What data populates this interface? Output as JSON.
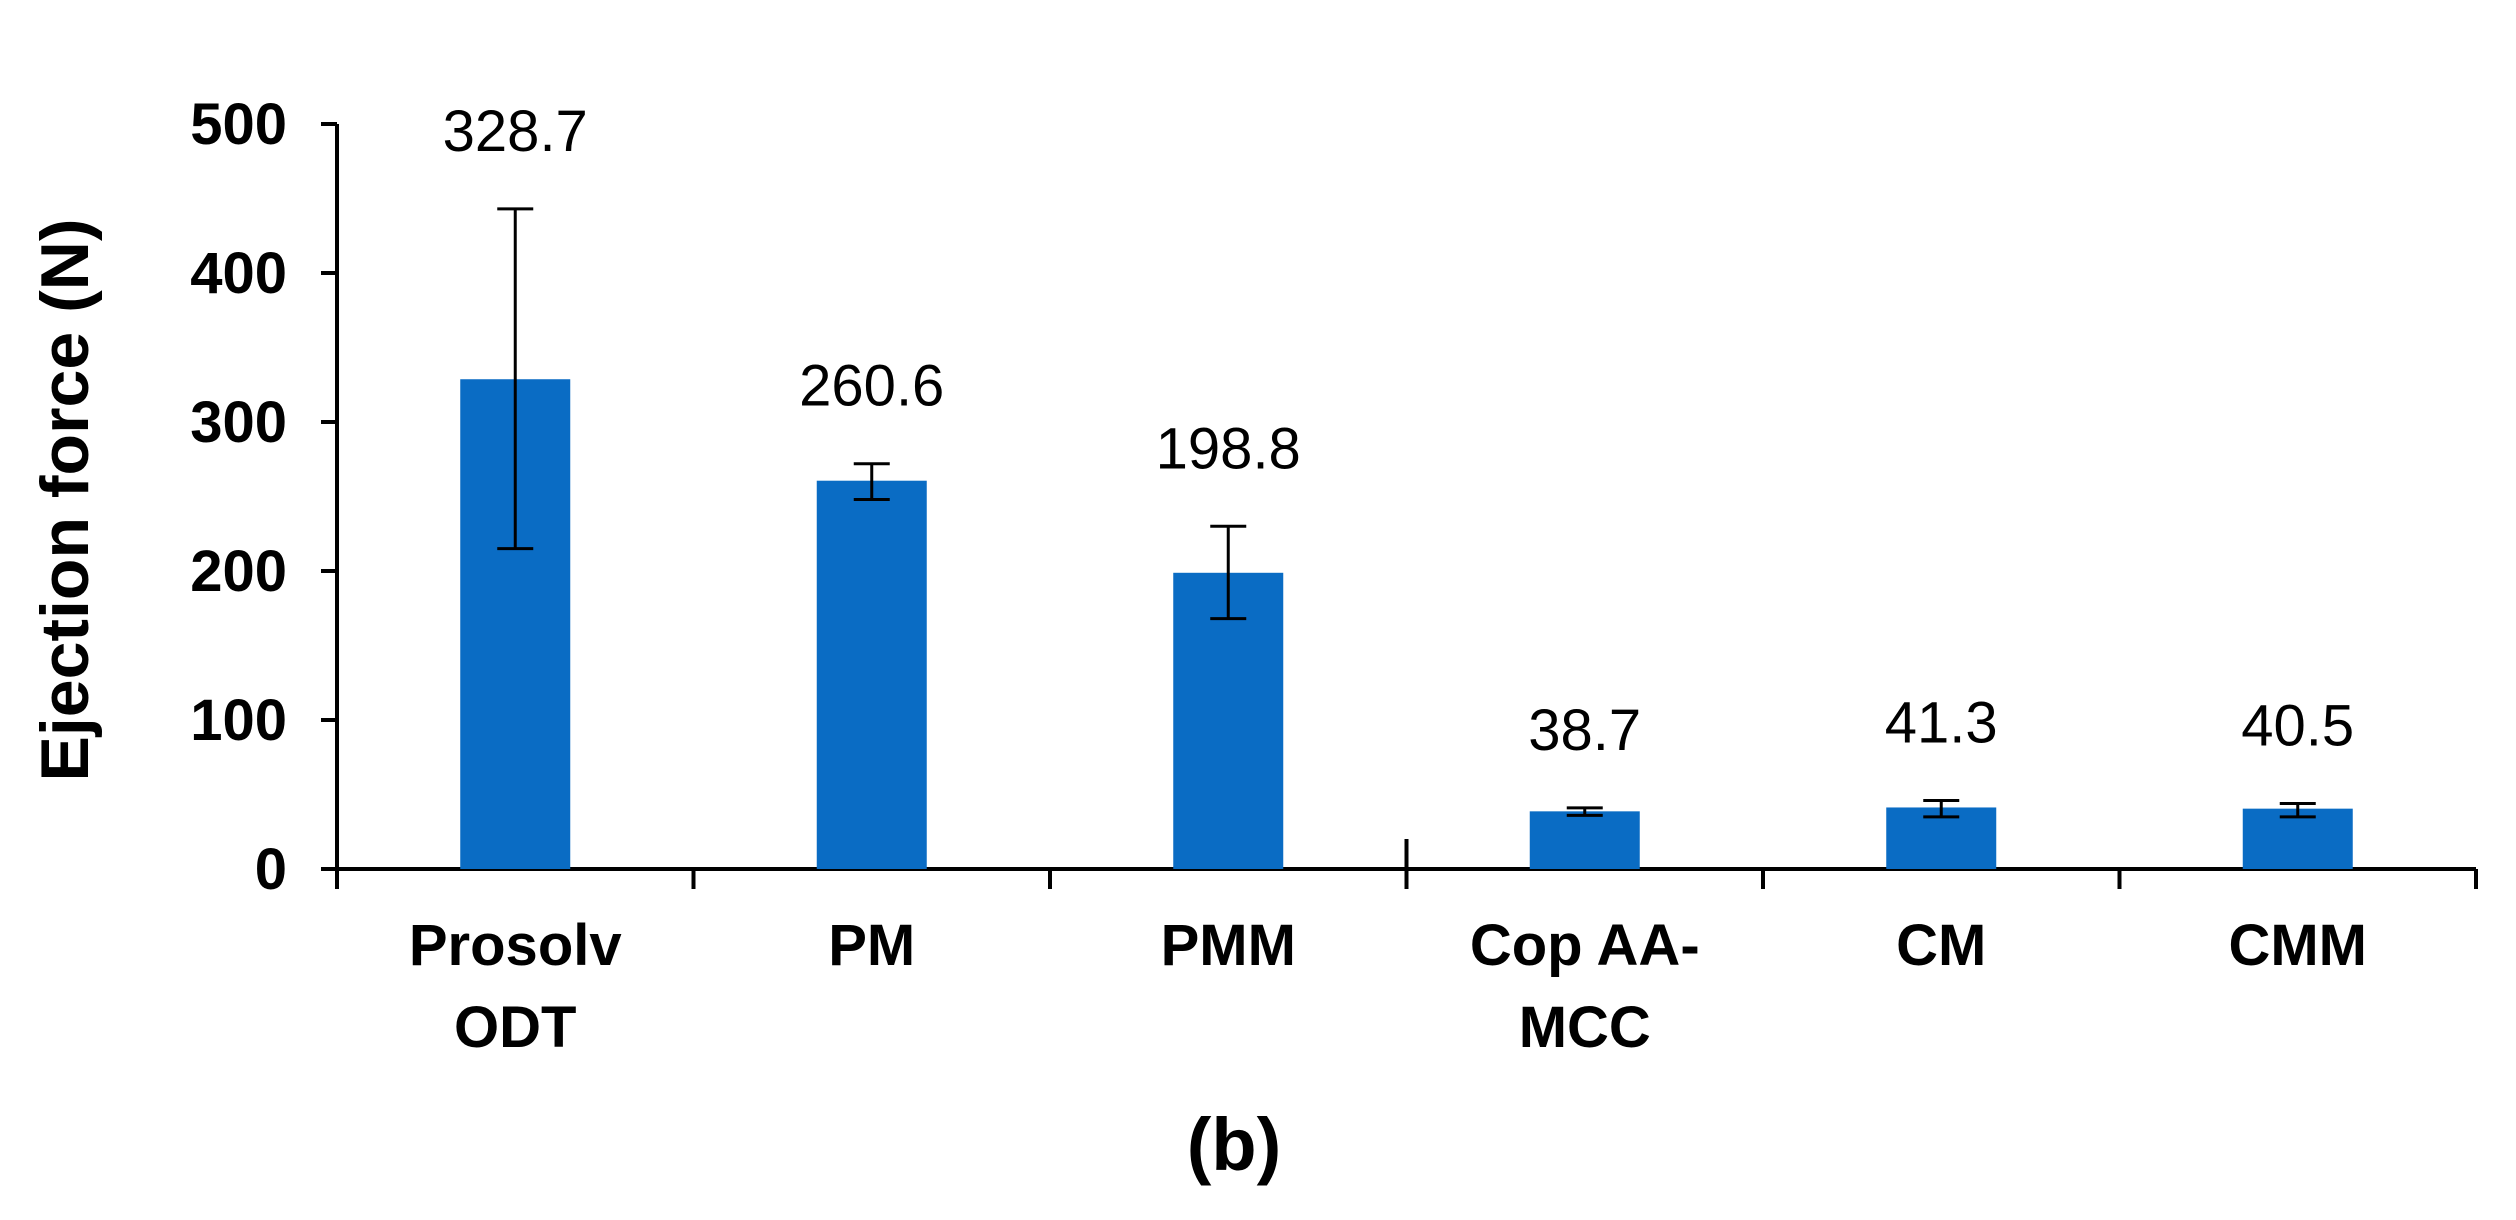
{
  "chart_data": {
    "type": "bar",
    "title": "",
    "panel_label": "(b)",
    "xlabel": "",
    "ylabel": "Ejection force (N)",
    "ylim": [
      0,
      500
    ],
    "yticks": [
      "0",
      "100",
      "200",
      "300",
      "400",
      "500"
    ],
    "grid": false,
    "categories": [
      [
        "Prosolv",
        "ODT"
      ],
      [
        "PM"
      ],
      [
        "PMM"
      ],
      [
        "Cop AA-",
        "MCC"
      ],
      [
        "CM"
      ],
      [
        "CMM"
      ]
    ],
    "values": [
      328.7,
      260.6,
      198.8,
      38.7,
      41.3,
      40.5
    ],
    "data_labels": [
      "328.7",
      "260.6",
      "198.8",
      "38.7",
      "41.3",
      "40.5"
    ],
    "error_low": [
      215,
      248,
      168,
      36,
      35,
      35
    ],
    "error_high": [
      443,
      272,
      230,
      41,
      46,
      44
    ],
    "group_divider_after_index": 2,
    "bar_color": "#0a6cc4"
  }
}
